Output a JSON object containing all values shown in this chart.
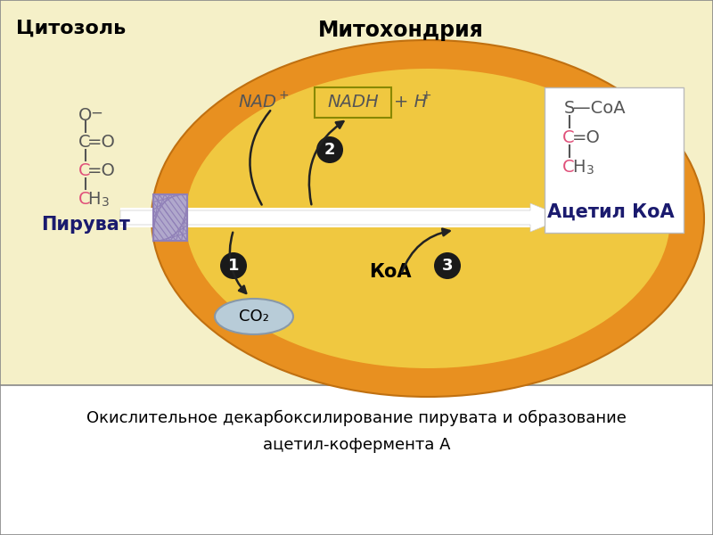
{
  "bg_color": "#fafaf0",
  "diagram_bg": "#f5f0c8",
  "mito_outer_color": "#e89020",
  "mito_inner_color": "#f0c840",
  "cytosol_label": "Цитозоль",
  "mito_label": "Митохондрия",
  "pyruvate_label": "Пируват",
  "koa_label": "КоА",
  "acetyl_koa_label": "Ацетил КоА",
  "caption_line1": "Окислительное декарбоксилирование пирувата и образование",
  "caption_line2": "ацетил-кофермента А",
  "arrow_color": "#222222",
  "channel_color": "#b0a8cc",
  "co2_bg": "#b8ccd8",
  "nad_text": "NAD",
  "nadh_text": "NADH",
  "circle_color": "#1a1a1a",
  "pink_color": "#e0507a",
  "dark_navy": "#1a1a6e",
  "text_color_dark": "#555555",
  "white": "#ffffff",
  "nadh_border": "#888800",
  "bond_color": "#555555"
}
